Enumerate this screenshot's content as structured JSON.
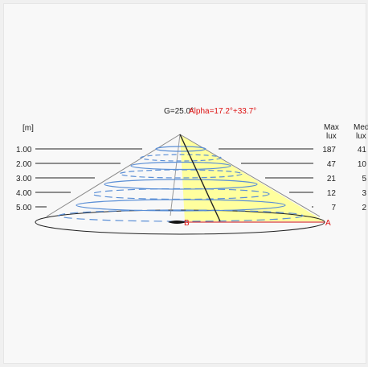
{
  "header": {
    "g_label": "G=25.0°",
    "alpha_label": "Alpha=17.2°+33.7°"
  },
  "axis": {
    "unit_label": "[m]",
    "max_header_1": "Max",
    "max_header_2": "lux",
    "med_header_1": "Med",
    "med_header_2": "lux"
  },
  "rows": [
    {
      "distance": "1.00",
      "max_lux": "187",
      "med_lux": "41"
    },
    {
      "distance": "2.00",
      "max_lux": "47",
      "med_lux": "10"
    },
    {
      "distance": "3.00",
      "max_lux": "21",
      "med_lux": "5"
    },
    {
      "distance": "4.00",
      "max_lux": "12",
      "med_lux": "3"
    },
    {
      "distance": "5.00",
      "max_lux": "7",
      "med_lux": "2"
    }
  ],
  "points": {
    "a": "A",
    "b": "B"
  },
  "colors": {
    "beam_highlight": "#ffff99",
    "isoline": "#5b8fd6",
    "red_accent": "#d11111",
    "cone_edge": "#777777"
  }
}
